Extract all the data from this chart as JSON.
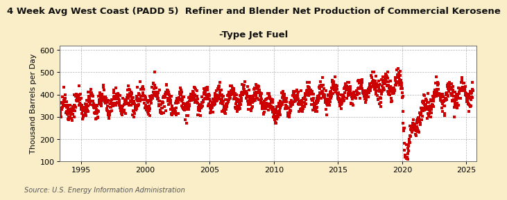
{
  "title_line1": "4 Week Avg West Coast (PADD 5)  Refiner and Blender Net Production of Commercial Kerosene",
  "title_line2": "-Type Jet Fuel",
  "ylabel": "Thousand Barrels per Day",
  "source": "Source: U.S. Energy Information Administration",
  "xlim": [
    1993.3,
    2025.8
  ],
  "ylim": [
    100,
    620
  ],
  "yticks": [
    100,
    200,
    300,
    400,
    500,
    600
  ],
  "xticks": [
    1995,
    2000,
    2005,
    2010,
    2015,
    2020,
    2025
  ],
  "fig_bg_color": "#faeec8",
  "plot_bg_color": "#ffffff",
  "marker_color": "#cc0000",
  "grid_color": "#aaaaaa",
  "marker_size": 3.0,
  "title_fontsize": 9.5,
  "label_fontsize": 8.0,
  "tick_fontsize": 8.0,
  "source_fontsize": 7.0
}
